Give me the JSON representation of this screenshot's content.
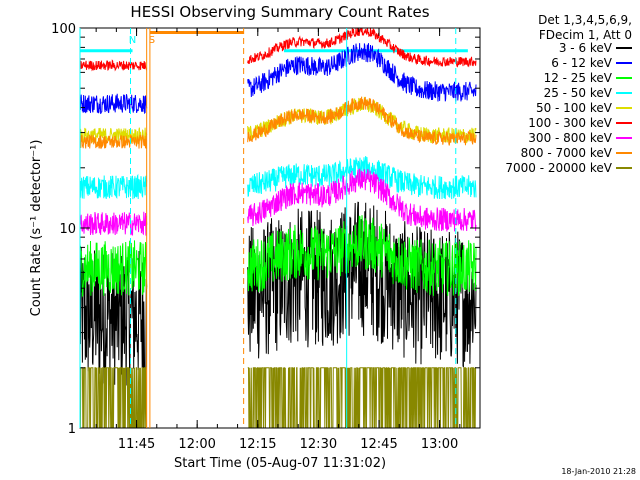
{
  "chart_data": {
    "type": "line",
    "title": "HESSI Observing Summary Count Rates",
    "xlabel": "Start Time (05-Aug-07 11:31:02)",
    "ylabel": "Count Rate (s⁻¹ detector⁻¹)",
    "x_range_minutes": [
      0,
      99
    ],
    "ylim": [
      1,
      100
    ],
    "y_scale": "log",
    "x_ticks": [
      {
        "label": "11:45",
        "t": 14
      },
      {
        "label": "12:00",
        "t": 29
      },
      {
        "label": "12:15",
        "t": 44
      },
      {
        "label": "12:30",
        "t": 59
      },
      {
        "label": "12:45",
        "t": 74
      },
      {
        "label": "13:00",
        "t": 89
      }
    ],
    "y_ticks": [
      {
        "label": "1",
        "v": 1
      },
      {
        "label": "10",
        "v": 10
      },
      {
        "label": "100",
        "v": 100
      }
    ],
    "legend": {
      "placement": "top-right",
      "header": [
        "Det 1,3,4,5,6,9,",
        "FDecim 1, Att 0"
      ]
    },
    "series": [
      {
        "name": "3 - 6 keV",
        "color": "#000000",
        "pre": 3.6,
        "post": 4.5,
        "jitter": 0.35,
        "peak": 1.25
      },
      {
        "name": "6 - 12 keV",
        "color": "#0000ff",
        "pre": 42,
        "post": 48,
        "jitter": 0.05,
        "peak": 1.35
      },
      {
        "name": "12 - 25 keV",
        "color": "#00ff00",
        "pre": 6.3,
        "post": 6.3,
        "jitter": 0.14,
        "peak": 1.2
      },
      {
        "name": "25 - 50 keV",
        "color": "#00ffff",
        "pre": 16,
        "post": 16,
        "jitter": 0.06,
        "peak": 1.15
      },
      {
        "name": "50 - 100 keV",
        "color": "#dddd00",
        "pre": 29,
        "post": 29,
        "jitter": 0.04,
        "peak": 1.25
      },
      {
        "name": "100 - 300 keV",
        "color": "#ff0000",
        "pre": 65,
        "post": 68,
        "jitter": 0.025,
        "peak": 1.25
      },
      {
        "name": "300 - 800 keV",
        "color": "#ff00ff",
        "pre": 10.5,
        "post": 11,
        "jitter": 0.06,
        "peak": 1.35
      },
      {
        "name": "800 - 7000 keV",
        "color": "#ff8800",
        "pre": 27,
        "post": 28,
        "jitter": 0.035,
        "peak": 1.3
      },
      {
        "name": "7000 - 20000 keV",
        "color": "#888800",
        "pre": 1.2,
        "post": 1.25,
        "jitter": 0.5,
        "peak": 1.1
      }
    ],
    "flag_lines": [
      {
        "t": 0,
        "color": "#00ffff",
        "style": "solid",
        "label": ""
      },
      {
        "t": 12.5,
        "color": "#00ffff",
        "style": "dashed",
        "label": "N"
      },
      {
        "t": 16.5,
        "color": "#ff8800",
        "style": "solid",
        "label": ""
      },
      {
        "t": 17.3,
        "color": "#ff8800",
        "style": "solid",
        "label": "S"
      },
      {
        "t": 40.5,
        "color": "#ff8800",
        "style": "dashed",
        "label": ""
      },
      {
        "t": 66,
        "color": "#00ffff",
        "style": "solid",
        "label": ""
      },
      {
        "t": 93,
        "color": "#00ffff",
        "style": "dashed",
        "label": ""
      }
    ],
    "coverage": {
      "data_end": 16.5,
      "saa_start": 17.3,
      "saa_end": 40.5,
      "data_resume": 41.5,
      "saa_level": 95,
      "cyan_marker_level": 77,
      "flare_peak": 54,
      "flare_width": 8,
      "flare_peak2": 70,
      "flare_width2": 8
    },
    "timestamp": "18-Jan-2010 21:28"
  }
}
